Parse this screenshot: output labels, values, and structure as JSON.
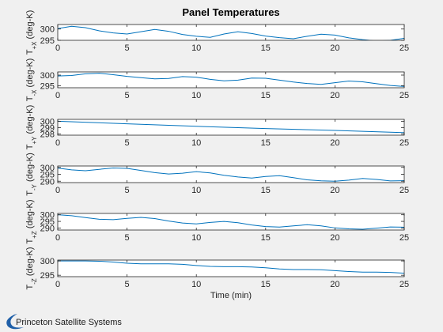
{
  "figure": {
    "background": "#f0f0f0",
    "axes_background": "#ffffff",
    "line_color": "#0072bd",
    "logo_color": "#1f5fa8",
    "logo_text": "Princeton Satellite Systems"
  },
  "chart_data": [
    {
      "type": "line",
      "title": "Panel Temperatures",
      "ylabel": "T_{+X} (deg-K)",
      "xlabel": "",
      "xlim": [
        0,
        25
      ],
      "ylim": [
        295,
        302
      ],
      "xticks": [
        "0",
        "5",
        "10",
        "15",
        "20",
        "25"
      ],
      "yticks": [
        {
          "value": 295,
          "label": "295"
        },
        {
          "value": 300,
          "label": "300"
        }
      ],
      "x": [
        0,
        1,
        2,
        3,
        4,
        5,
        6,
        7,
        8,
        9,
        10,
        11,
        12,
        13,
        14,
        15,
        16,
        17,
        18,
        19,
        20,
        21,
        22,
        23,
        24,
        25
      ],
      "y": [
        300.2,
        301.2,
        300.6,
        299.2,
        298.3,
        297.8,
        298.8,
        299.8,
        299.0,
        297.6,
        296.8,
        296.3,
        297.8,
        298.8,
        298.0,
        296.9,
        296.2,
        295.7,
        296.8,
        297.7,
        297.3,
        296.1,
        295.3,
        294.7,
        295.0,
        295.9
      ]
    },
    {
      "type": "line",
      "title": "",
      "ylabel": "T_{-X} (deg-K)",
      "xlabel": "",
      "xlim": [
        0,
        25
      ],
      "ylim": [
        294,
        301.5
      ],
      "xticks": [
        "0",
        "5",
        "10",
        "15",
        "20",
        "25"
      ],
      "yticks": [
        {
          "value": 295,
          "label": "295"
        },
        {
          "value": 300,
          "label": "300"
        }
      ],
      "x": [
        0,
        1,
        2,
        3,
        4,
        5,
        6,
        7,
        8,
        9,
        10,
        11,
        12,
        13,
        14,
        15,
        16,
        17,
        18,
        19,
        20,
        21,
        22,
        23,
        24,
        25
      ],
      "y": [
        299.6,
        299.8,
        300.6,
        300.9,
        300.2,
        299.4,
        298.8,
        298.2,
        298.4,
        299.3,
        299.0,
        298.0,
        297.3,
        297.6,
        298.6,
        298.5,
        297.6,
        296.7,
        296.0,
        295.6,
        296.4,
        297.2,
        296.8,
        295.9,
        295.1,
        294.6
      ]
    },
    {
      "type": "line",
      "title": "",
      "ylabel": "T_{+Y} (deg-K)",
      "xlabel": "",
      "xlim": [
        0,
        25
      ],
      "ylim": [
        297.8,
        300.3
      ],
      "xticks": [
        "0",
        "5",
        "10",
        "15",
        "20",
        "25"
      ],
      "yticks": [
        {
          "value": 298,
          "label": "298"
        },
        {
          "value": 299,
          "label": "299"
        },
        {
          "value": 300,
          "label": "300"
        }
      ],
      "x": [
        0,
        5,
        10,
        15,
        20,
        25
      ],
      "y": [
        300.0,
        299.6,
        299.2,
        298.85,
        298.55,
        298.2
      ]
    },
    {
      "type": "line",
      "title": "",
      "ylabel": "T_{-Y} (deg-K)",
      "xlabel": "",
      "xlim": [
        0,
        25
      ],
      "ylim": [
        289,
        301
      ],
      "xticks": [
        "0",
        "5",
        "10",
        "15",
        "20",
        "25"
      ],
      "yticks": [
        {
          "value": 290,
          "label": "290"
        },
        {
          "value": 295,
          "label": "295"
        },
        {
          "value": 300,
          "label": "300"
        }
      ],
      "x": [
        0,
        1,
        2,
        3,
        4,
        5,
        6,
        7,
        8,
        9,
        10,
        11,
        12,
        13,
        14,
        15,
        16,
        17,
        18,
        19,
        20,
        21,
        22,
        23,
        24,
        25
      ],
      "y": [
        299.5,
        298.2,
        297.6,
        298.6,
        299.6,
        299.3,
        297.8,
        296.2,
        295.2,
        295.8,
        296.9,
        296.0,
        294.3,
        293.1,
        292.3,
        293.4,
        294.0,
        292.6,
        291.0,
        290.3,
        290.0,
        290.8,
        292.0,
        291.3,
        290.2,
        290.4
      ]
    },
    {
      "type": "line",
      "title": "",
      "ylabel": "T_{+Z} (deg-K)",
      "xlabel": "",
      "xlim": [
        0,
        25
      ],
      "ylim": [
        288.5,
        301
      ],
      "xticks": [
        "0",
        "5",
        "10",
        "15",
        "20",
        "25"
      ],
      "yticks": [
        {
          "value": 290,
          "label": "290"
        },
        {
          "value": 295,
          "label": "295"
        },
        {
          "value": 300,
          "label": "300"
        }
      ],
      "x": [
        0,
        1,
        2,
        3,
        4,
        5,
        6,
        7,
        8,
        9,
        10,
        11,
        12,
        13,
        14,
        15,
        16,
        17,
        18,
        19,
        20,
        21,
        22,
        23,
        24,
        25
      ],
      "y": [
        300.0,
        299.3,
        297.9,
        296.6,
        296.3,
        297.3,
        298.0,
        297.1,
        295.3,
        293.8,
        293.1,
        294.2,
        295.0,
        294.0,
        292.3,
        291.1,
        290.7,
        291.6,
        292.5,
        291.6,
        290.1,
        289.4,
        289.1,
        289.9,
        290.8,
        290.6
      ]
    },
    {
      "type": "line",
      "title": "",
      "ylabel": "T_{-Z} (deg-K)",
      "xlabel": "Time (min)",
      "xlim": [
        0,
        25
      ],
      "ylim": [
        294.5,
        300.3
      ],
      "xticks": [
        "0",
        "5",
        "10",
        "15",
        "20",
        "25"
      ],
      "yticks": [
        {
          "value": 295,
          "label": "295"
        },
        {
          "value": 300,
          "label": "300"
        }
      ],
      "x": [
        0,
        1,
        2,
        3,
        4,
        5,
        6,
        7,
        8,
        9,
        10,
        11,
        12,
        13,
        14,
        15,
        16,
        17,
        18,
        19,
        20,
        21,
        22,
        23,
        24,
        25
      ],
      "y": [
        300.0,
        300.0,
        300.0,
        299.9,
        299.6,
        299.2,
        299.0,
        299.0,
        299.0,
        298.8,
        298.4,
        298.1,
        298.0,
        298.0,
        297.9,
        297.6,
        297.2,
        297.0,
        297.0,
        296.9,
        296.6,
        296.3,
        296.1,
        296.1,
        296.0,
        295.7
      ]
    }
  ]
}
